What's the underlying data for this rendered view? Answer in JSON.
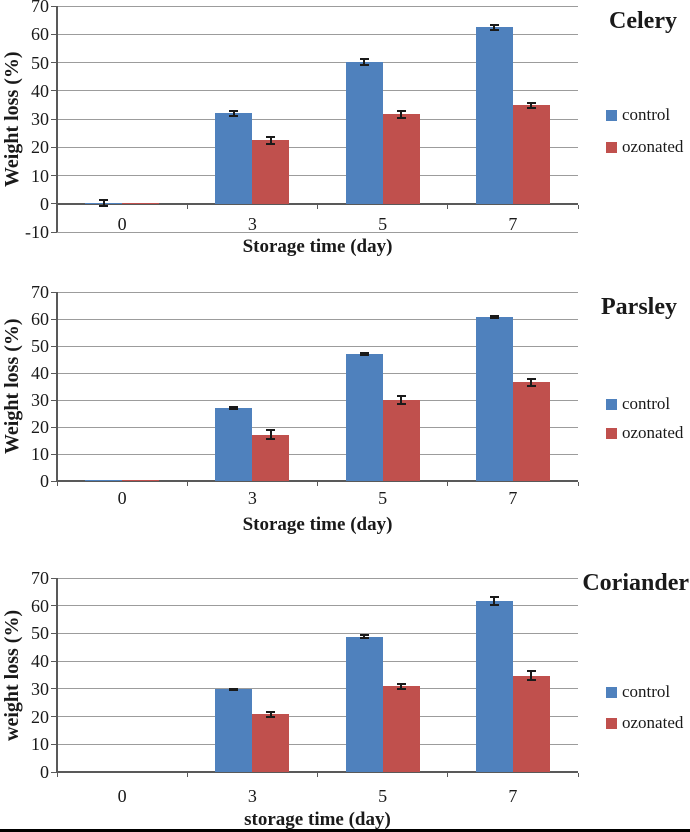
{
  "colors": {
    "control": "#4F81BD",
    "ozonated": "#C0504D",
    "gridline": "#9C9C9C",
    "axis": "#595959",
    "error_bar": "#1a1a1a",
    "text": "#1a1a1a",
    "figure_border": "#000000"
  },
  "chart_data": [
    {
      "type": "bar",
      "title": "Celery",
      "xlabel": "Storage time (day)",
      "ylabel": "Weight loss (%)",
      "categories": [
        "0",
        "3",
        "5",
        "7"
      ],
      "series": [
        {
          "name": "control",
          "values": [
            0.2,
            32.0,
            50.2,
            62.4
          ],
          "errors": [
            1.0,
            1.0,
            1.0,
            0.9
          ]
        },
        {
          "name": "ozonated",
          "values": [
            0.4,
            22.4,
            31.6,
            34.9
          ],
          "errors": [
            0,
            1.3,
            1.1,
            0.9
          ]
        }
      ],
      "ylim": [
        -10,
        70
      ],
      "ytick_step": 10,
      "grid": true,
      "legend_position": "right"
    },
    {
      "type": "bar",
      "title": "Parsley",
      "xlabel": "Storage time (day)",
      "ylabel": "Weight loss (%)",
      "categories": [
        "0",
        "3",
        "5",
        "7"
      ],
      "series": [
        {
          "name": "control",
          "values": [
            0.2,
            27.0,
            47.0,
            60.8
          ],
          "errors": [
            0,
            0.3,
            0.3,
            0.3
          ]
        },
        {
          "name": "ozonated",
          "values": [
            0.3,
            17.2,
            30.0,
            36.6
          ],
          "errors": [
            0,
            1.8,
            1.5,
            1.3
          ]
        }
      ],
      "ylim": [
        0,
        70
      ],
      "ytick_step": 10,
      "grid": true,
      "legend_position": "right"
    },
    {
      "type": "bar",
      "title": "Coriander",
      "xlabel": "storage time (day)",
      "ylabel": "weight loss (%)",
      "categories": [
        "0",
        "3",
        "5",
        "7"
      ],
      "series": [
        {
          "name": "control",
          "values": [
            0,
            29.8,
            48.8,
            61.7
          ],
          "errors": [
            0,
            0.3,
            0.5,
            1.3
          ]
        },
        {
          "name": "ozonated",
          "values": [
            0,
            20.8,
            30.9,
            34.8
          ],
          "errors": [
            0,
            0.8,
            1.0,
            1.5
          ]
        }
      ],
      "ylim": [
        0,
        70
      ],
      "ytick_step": 10,
      "grid": true,
      "legend_position": "right"
    }
  ]
}
